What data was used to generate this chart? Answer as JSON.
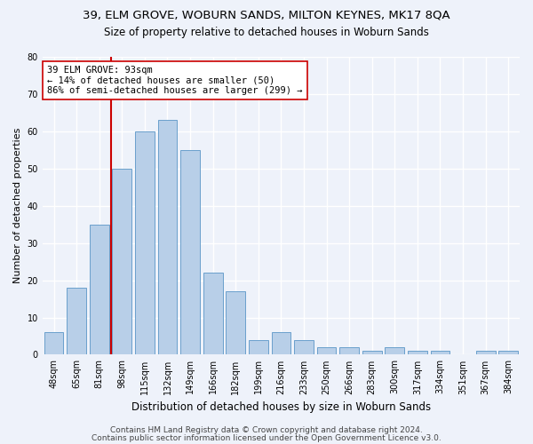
{
  "title1": "39, ELM GROVE, WOBURN SANDS, MILTON KEYNES, MK17 8QA",
  "title2": "Size of property relative to detached houses in Woburn Sands",
  "xlabel": "Distribution of detached houses by size in Woburn Sands",
  "ylabel": "Number of detached properties",
  "categories": [
    "48sqm",
    "65sqm",
    "81sqm",
    "98sqm",
    "115sqm",
    "132sqm",
    "149sqm",
    "166sqm",
    "182sqm",
    "199sqm",
    "216sqm",
    "233sqm",
    "250sqm",
    "266sqm",
    "283sqm",
    "300sqm",
    "317sqm",
    "334sqm",
    "351sqm",
    "367sqm",
    "384sqm"
  ],
  "values": [
    6,
    18,
    35,
    50,
    60,
    63,
    55,
    22,
    17,
    4,
    6,
    4,
    2,
    2,
    1,
    2,
    1,
    1,
    0,
    1,
    1
  ],
  "bar_color": "#b8cfe8",
  "bar_edge_color": "#6aa0cc",
  "vline_color": "#cc0000",
  "vline_x_index": 3,
  "annotation_text": "39 ELM GROVE: 93sqm\n← 14% of detached houses are smaller (50)\n86% of semi-detached houses are larger (299) →",
  "annotation_box_edge_color": "#cc0000",
  "ylim": [
    0,
    80
  ],
  "yticks": [
    0,
    10,
    20,
    30,
    40,
    50,
    60,
    70,
    80
  ],
  "footer1": "Contains HM Land Registry data © Crown copyright and database right 2024.",
  "footer2": "Contains public sector information licensed under the Open Government Licence v3.0.",
  "bg_color": "#eef2fa",
  "plot_bg_color": "#eef2fa",
  "grid_color": "#ffffff",
  "title1_fontsize": 9.5,
  "title2_fontsize": 8.5,
  "xlabel_fontsize": 8.5,
  "ylabel_fontsize": 8,
  "tick_fontsize": 7,
  "annotation_fontsize": 7.5,
  "footer_fontsize": 6.5
}
